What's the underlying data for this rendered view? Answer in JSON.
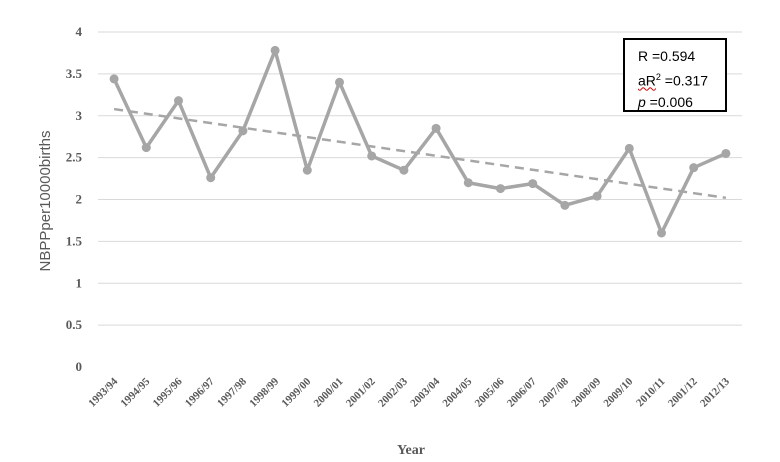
{
  "chart_data": {
    "type": "line",
    "categories": [
      "1993/94",
      "1994/95",
      "1995/96",
      "1996/97",
      "1997/98",
      "1998/99",
      "1999/00",
      "2000/01",
      "2001/02",
      "2002/03",
      "2003/04",
      "2004/05",
      "2005/06",
      "2006/07",
      "2007/08",
      "2008/09",
      "2009/10",
      "2010/11",
      "2001/12",
      "2012/13"
    ],
    "values": [
      3.44,
      2.62,
      3.18,
      2.26,
      2.82,
      3.78,
      2.35,
      3.4,
      2.52,
      2.35,
      2.85,
      2.2,
      2.13,
      2.19,
      1.93,
      2.04,
      2.61,
      1.6,
      2.38,
      2.55
    ],
    "trendline": {
      "start": 3.08,
      "end": 2.02
    },
    "xlabel": "Year",
    "ylabel": "NBPPper10000births",
    "ylim": [
      0,
      4
    ],
    "yticks": [
      {
        "value": 4,
        "label": "4"
      },
      {
        "value": 3.5,
        "label": "3.5"
      },
      {
        "value": 3,
        "label": "3"
      },
      {
        "value": 2.5,
        "label": "2.5"
      },
      {
        "value": 2,
        "label": "2"
      },
      {
        "value": 1.5,
        "label": "1.5"
      },
      {
        "value": 1,
        "label": "1"
      },
      {
        "value": 0.5,
        "label": "0.5"
      },
      {
        "value": 0,
        "label": "0"
      }
    ],
    "grid": true,
    "colors": {
      "series": "#a6a6a6",
      "trend": "#a6a6a6",
      "grid": "#d9d9d9",
      "text": "#595959"
    }
  },
  "stats": {
    "r_label": "R =0.594",
    "ar2_prefix": "aR",
    "ar2_sup": "2",
    "ar2_suffix": " =0.317",
    "p_label": "p",
    "p_value": " =0.006"
  }
}
